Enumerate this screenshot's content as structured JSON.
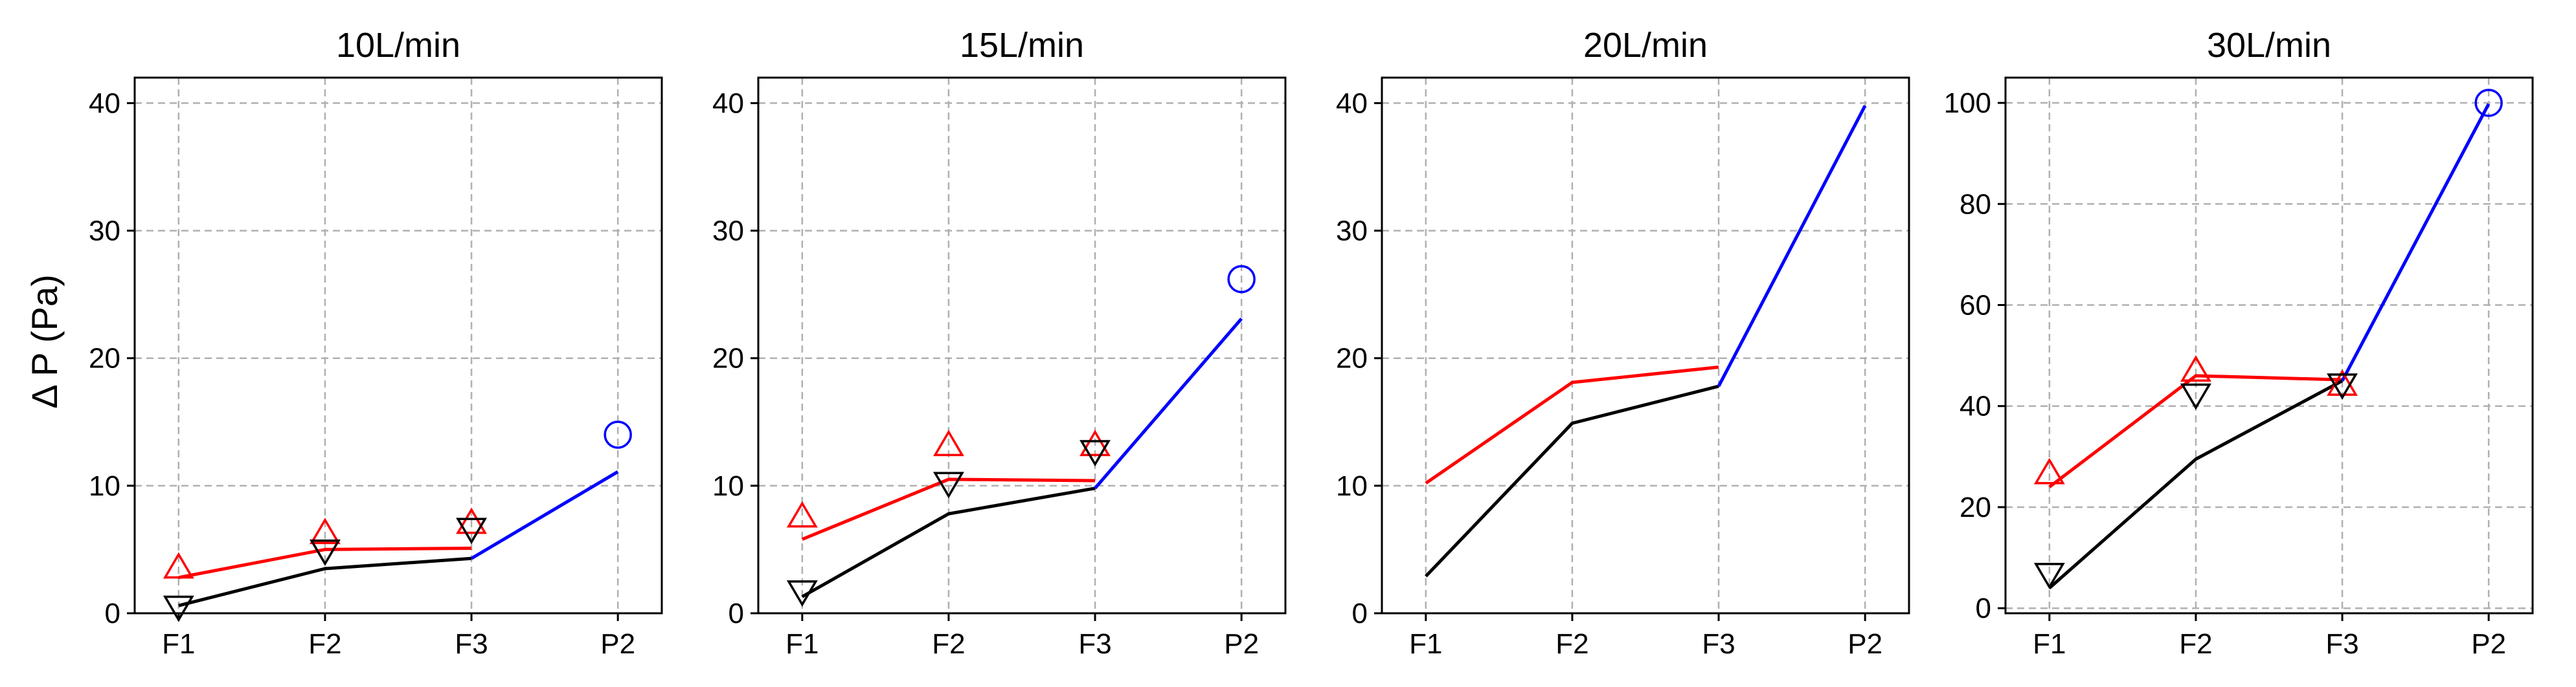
{
  "figure": {
    "ylabel": "Δ P (Pa)"
  },
  "chart_data": [
    {
      "type": "line",
      "title": "10L/min",
      "categories": [
        "F1",
        "F2",
        "F3",
        "P2"
      ],
      "ylim": [
        0,
        42
      ],
      "yticks": [
        0,
        10,
        20,
        30,
        40
      ],
      "grid": true,
      "series": [
        {
          "color": "#ff0000",
          "line": [
            [
              1,
              2.8
            ],
            [
              2,
              5.0
            ],
            [
              3,
              5.1
            ]
          ],
          "markers": [
            [
              1,
              3.5
            ],
            [
              2,
              6.2
            ],
            [
              3,
              7.0
            ]
          ],
          "marker": "triangle-up"
        },
        {
          "color": "#000000",
          "line": [
            [
              1,
              0.6
            ],
            [
              2,
              3.5
            ],
            [
              3,
              4.3
            ]
          ],
          "markers": [
            [
              1,
              0.6
            ],
            [
              2,
              5.0
            ],
            [
              3,
              6.7
            ]
          ],
          "marker": "triangle-down"
        },
        {
          "color": "#0000ff",
          "line": [
            [
              3,
              4.3
            ],
            [
              4,
              11.1
            ]
          ],
          "markers": [
            [
              4,
              14.0
            ]
          ],
          "marker": "circle"
        }
      ]
    },
    {
      "type": "line",
      "title": "15L/min",
      "categories": [
        "F1",
        "F2",
        "F3",
        "P2"
      ],
      "ylim": [
        0,
        42
      ],
      "yticks": [
        0,
        10,
        20,
        30,
        40
      ],
      "grid": true,
      "series": [
        {
          "color": "#ff0000",
          "line": [
            [
              1,
              5.8
            ],
            [
              2,
              10.5
            ],
            [
              3,
              10.4
            ]
          ],
          "markers": [
            [
              1,
              7.5
            ],
            [
              2,
              13.1
            ],
            [
              3,
              13.1
            ]
          ],
          "marker": "triangle-up"
        },
        {
          "color": "#000000",
          "line": [
            [
              1,
              1.3
            ],
            [
              2,
              7.8
            ],
            [
              3,
              9.8
            ]
          ],
          "markers": [
            [
              1,
              1.8
            ],
            [
              2,
              10.3
            ],
            [
              3,
              12.8
            ]
          ],
          "marker": "triangle-down"
        },
        {
          "color": "#0000ff",
          "line": [
            [
              3,
              9.8
            ],
            [
              4,
              23.1
            ]
          ],
          "markers": [
            [
              4,
              26.2
            ]
          ],
          "marker": "circle"
        }
      ]
    },
    {
      "type": "line",
      "title": "20L/min",
      "categories": [
        "F1",
        "F2",
        "F3",
        "P2"
      ],
      "ylim": [
        0,
        42
      ],
      "yticks": [
        0,
        10,
        20,
        30,
        40
      ],
      "grid": true,
      "series": [
        {
          "color": "#ff0000",
          "line": [
            [
              1,
              10.2
            ],
            [
              2,
              18.1
            ],
            [
              3,
              19.3
            ]
          ],
          "markers": [],
          "marker": "triangle-up"
        },
        {
          "color": "#000000",
          "line": [
            [
              1,
              2.9
            ],
            [
              2,
              14.9
            ],
            [
              3,
              17.8
            ]
          ],
          "markers": [],
          "marker": "triangle-down"
        },
        {
          "color": "#0000ff",
          "line": [
            [
              3,
              17.8
            ],
            [
              4,
              39.8
            ]
          ],
          "markers": [],
          "marker": "circle"
        }
      ]
    },
    {
      "type": "line",
      "title": "30L/min",
      "categories": [
        "F1",
        "F2",
        "F3",
        "P2"
      ],
      "ylim": [
        -1,
        105
      ],
      "yticks": [
        0,
        20,
        40,
        60,
        80,
        100
      ],
      "grid": true,
      "series": [
        {
          "color": "#ff0000",
          "line": [
            [
              1,
              24.0
            ],
            [
              2,
              46.0
            ],
            [
              3,
              45.2
            ]
          ],
          "markers": [
            [
              1,
              26.5
            ],
            [
              2,
              46.8
            ],
            [
              3,
              44.0
            ]
          ],
          "marker": "triangle-up"
        },
        {
          "color": "#000000",
          "line": [
            [
              1,
              4.0
            ],
            [
              2,
              29.5
            ],
            [
              3,
              45.0
            ]
          ],
          "markers": [
            [
              1,
              7.0
            ],
            [
              2,
              42.5
            ],
            [
              3,
              44.5
            ]
          ],
          "marker": "triangle-down"
        },
        {
          "color": "#0000ff",
          "line": [
            [
              3,
              45.0
            ],
            [
              4,
              99.8
            ]
          ],
          "markers": [
            [
              4,
              100.0
            ]
          ],
          "marker": "circle"
        }
      ]
    }
  ]
}
